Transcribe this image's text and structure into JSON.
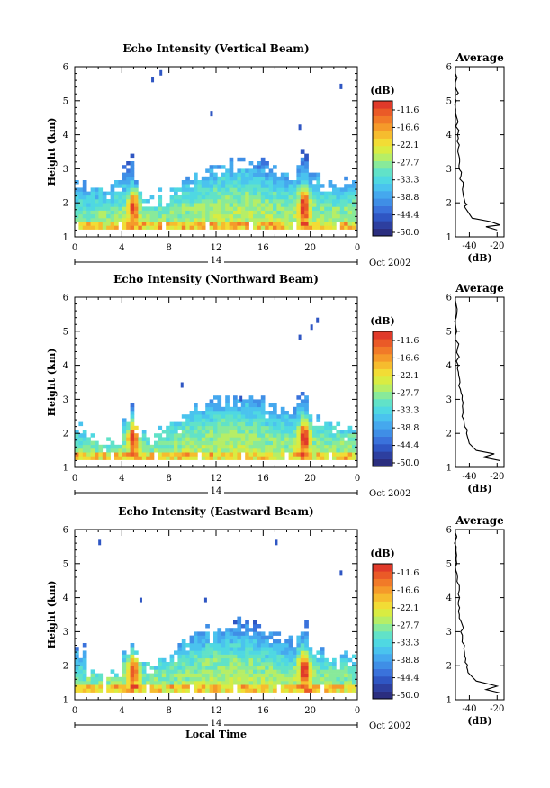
{
  "chart_data": [
    {
      "type": "heatmap",
      "title": "Echo Intensity (Vertical Beam)",
      "ylabel": "Height (km)",
      "xlabel": "",
      "x_ticks": [
        "0",
        "4",
        "8",
        "12",
        "16",
        "20",
        "0"
      ],
      "y_ticks": [
        "1",
        "2",
        "3",
        "4",
        "5",
        "6"
      ],
      "xlim": [
        0,
        24
      ],
      "ylim": [
        1,
        6
      ],
      "date_day": "14",
      "date_label": "Oct 2002",
      "colorbar": {
        "unit": "(dB)",
        "labels": [
          "-11.6",
          "-16.6",
          "-22.1",
          "-27.7",
          "-33.3",
          "-38.8",
          "-44.4",
          "-50.0"
        ]
      },
      "profile": {
        "title": "Average",
        "xlabel": "(dB)",
        "x_ticks": [
          "-40",
          "-20"
        ],
        "xlim": [
          -50,
          -15
        ],
        "points": [
          [
            -20,
            1.2
          ],
          [
            -28,
            1.3
          ],
          [
            -18,
            1.35
          ],
          [
            -25,
            1.45
          ],
          [
            -38,
            1.55
          ],
          [
            -42,
            1.8
          ],
          [
            -43,
            2.0
          ],
          [
            -45,
            2.4
          ],
          [
            -46,
            2.8
          ],
          [
            -47,
            3.2
          ],
          [
            -48,
            3.6
          ],
          [
            -48.5,
            4.0
          ],
          [
            -49,
            4.5
          ],
          [
            -49.5,
            5.0
          ],
          [
            -49,
            5.3
          ],
          [
            -50,
            5.8
          ]
        ]
      },
      "data": {
        "layer_top_km": [
          2.7,
          2.5,
          2.4,
          2.6,
          3.0,
          2.3,
          2.2,
          2.3,
          2.5,
          2.8,
          3.0,
          3.1,
          3.2,
          3.3,
          3.3,
          3.3,
          3.1,
          2.9,
          2.8,
          3.1,
          2.9,
          2.7,
          2.6,
          2.8
        ],
        "layer_peak_km": [
          1.6,
          1.6,
          1.7,
          1.7,
          1.8,
          1.6,
          1.6,
          1.7,
          1.8,
          1.9,
          2.0,
          2.1,
          2.2,
          2.2,
          2.2,
          2.1,
          2.0,
          1.9,
          1.9,
          2.0,
          1.9,
          1.8,
          1.8,
          1.8
        ],
        "convection_hour": [
          5,
          19.5
        ],
        "stray_points": [
          [
            6.5,
            5.7
          ],
          [
            7.2,
            5.9
          ],
          [
            11.5,
            4.7
          ],
          [
            19,
            4.3
          ],
          [
            22.5,
            5.5
          ]
        ]
      }
    },
    {
      "type": "heatmap",
      "title": "Echo Intensity (Northward Beam)",
      "ylabel": "Height (km)",
      "xlabel": "",
      "x_ticks": [
        "0",
        "4",
        "8",
        "12",
        "16",
        "20",
        "0"
      ],
      "y_ticks": [
        "1",
        "2",
        "3",
        "4",
        "5",
        "6"
      ],
      "xlim": [
        0,
        24
      ],
      "ylim": [
        1,
        6
      ],
      "date_day": "14",
      "date_label": "Oct 2002",
      "colorbar": {
        "unit": "(dB)",
        "labels": [
          "-11.6",
          "-16.6",
          "-22.1",
          "-27.7",
          "-33.3",
          "-38.8",
          "-44.4",
          "-50.0"
        ]
      },
      "profile": {
        "title": "Average",
        "xlabel": "(dB)",
        "x_ticks": [
          "-40",
          "-20"
        ],
        "xlim": [
          -50,
          -15
        ],
        "points": [
          [
            -18,
            1.2
          ],
          [
            -30,
            1.3
          ],
          [
            -22,
            1.4
          ],
          [
            -35,
            1.5
          ],
          [
            -40,
            1.7
          ],
          [
            -42,
            2.0
          ],
          [
            -44,
            2.4
          ],
          [
            -45,
            2.8
          ],
          [
            -46,
            3.2
          ],
          [
            -47,
            3.6
          ],
          [
            -48,
            4.0
          ],
          [
            -48.5,
            4.5
          ],
          [
            -49,
            5.0
          ],
          [
            -49.5,
            5.4
          ],
          [
            -50,
            5.9
          ]
        ]
      },
      "data": {
        "layer_top_km": [
          2.3,
          1.9,
          1.8,
          1.9,
          2.4,
          2.0,
          2.0,
          2.1,
          2.4,
          2.7,
          2.9,
          3.0,
          3.1,
          3.1,
          3.2,
          3.1,
          2.9,
          2.7,
          2.8,
          2.9,
          2.6,
          2.4,
          2.3,
          2.2
        ],
        "layer_peak_km": [
          1.5,
          1.5,
          1.5,
          1.6,
          1.7,
          1.6,
          1.6,
          1.6,
          1.8,
          1.9,
          2.0,
          2.0,
          2.1,
          2.1,
          2.1,
          2.0,
          1.9,
          1.8,
          1.8,
          1.9,
          1.8,
          1.7,
          1.7,
          1.7
        ],
        "convection_hour": [
          5,
          19.5
        ],
        "stray_points": [
          [
            9,
            3.5
          ],
          [
            14,
            3.1
          ],
          [
            19,
            4.9
          ],
          [
            20,
            5.2
          ],
          [
            20.5,
            5.4
          ]
        ]
      }
    },
    {
      "type": "heatmap",
      "title": "Echo Intensity (Eastward Beam)",
      "ylabel": "Height (km)",
      "xlabel": "Local Time",
      "x_ticks": [
        "0",
        "4",
        "8",
        "12",
        "16",
        "20",
        "0"
      ],
      "y_ticks": [
        "1",
        "2",
        "3",
        "4",
        "5",
        "6"
      ],
      "xlim": [
        0,
        24
      ],
      "ylim": [
        1,
        6
      ],
      "date_day": "14",
      "date_label": "Oct 2002",
      "colorbar": {
        "unit": "(dB)",
        "labels": [
          "-11.6",
          "-16.6",
          "-22.1",
          "-27.7",
          "-33.3",
          "-38.8",
          "-44.4",
          "-50.0"
        ]
      },
      "profile": {
        "title": "Average",
        "xlabel": "(dB)",
        "x_ticks": [
          "-40",
          "-20"
        ],
        "xlim": [
          -50,
          -15
        ],
        "points": [
          [
            -18,
            1.2
          ],
          [
            -28,
            1.3
          ],
          [
            -20,
            1.4
          ],
          [
            -35,
            1.55
          ],
          [
            -41,
            1.8
          ],
          [
            -43,
            2.1
          ],
          [
            -44,
            2.5
          ],
          [
            -45,
            2.9
          ],
          [
            -46,
            3.3
          ],
          [
            -47,
            3.7
          ],
          [
            -48,
            4.1
          ],
          [
            -48.5,
            4.6
          ],
          [
            -49,
            5.0
          ],
          [
            -49.5,
            5.5
          ],
          [
            -50,
            5.9
          ]
        ]
      },
      "data": {
        "layer_top_km": [
          2.5,
          1.8,
          1.7,
          1.9,
          2.3,
          2.0,
          2.0,
          2.1,
          2.5,
          2.8,
          3.0,
          3.1,
          3.2,
          3.3,
          3.3,
          3.2,
          3.0,
          2.9,
          2.8,
          2.9,
          2.6,
          2.4,
          2.3,
          2.3
        ],
        "layer_peak_km": [
          1.5,
          1.5,
          1.5,
          1.6,
          1.7,
          1.6,
          1.6,
          1.7,
          1.8,
          1.9,
          2.0,
          2.1,
          2.1,
          2.1,
          2.1,
          2.0,
          1.9,
          1.8,
          1.8,
          1.9,
          1.8,
          1.7,
          1.7,
          1.7
        ],
        "convection_hour": [
          5,
          19.5
        ],
        "stray_points": [
          [
            2,
            5.7
          ],
          [
            5.5,
            4.0
          ],
          [
            11,
            4.0
          ],
          [
            17,
            5.7
          ],
          [
            22.5,
            4.8
          ]
        ]
      }
    }
  ],
  "colors": {
    "scale": [
      "#2b2e7f",
      "#2d3f9f",
      "#2f56c3",
      "#3a72db",
      "#3f8ee6",
      "#45a8ee",
      "#4ac3ee",
      "#4fd8e2",
      "#61e2c8",
      "#88ea9a",
      "#b6ee66",
      "#d9ec42",
      "#f2dc35",
      "#f6bc2e",
      "#f59a2a",
      "#f17a28",
      "#ea5a27",
      "#e03a2a"
    ],
    "axis": "#000000",
    "background": "#ffffff"
  }
}
